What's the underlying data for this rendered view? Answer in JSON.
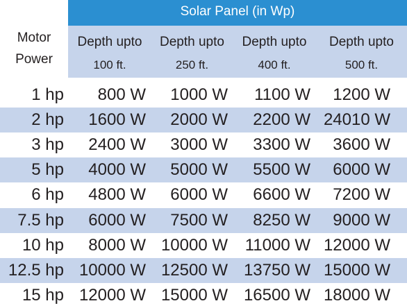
{
  "table": {
    "title": "Solar Panel (in Wp)",
    "motor_header": [
      "Motor",
      "Power"
    ],
    "depth_headers": [
      [
        "Depth upto",
        "100 ft."
      ],
      [
        "Depth upto",
        "250 ft."
      ],
      [
        "Depth upto",
        "400 ft."
      ],
      [
        "Depth upto",
        "500 ft."
      ]
    ],
    "rows": [
      [
        "1 hp",
        "800 W",
        "1000 W",
        "1100 W",
        "1200 W"
      ],
      [
        "2 hp",
        "1600 W",
        "2000 W",
        "2200 W",
        "24010 W"
      ],
      [
        "3 hp",
        "2400 W",
        "3000 W",
        "3300 W",
        "3600 W"
      ],
      [
        "5 hp",
        "4000 W",
        "5000 W",
        "5500 W",
        "6000 W"
      ],
      [
        "6 hp",
        "4800 W",
        "6000 W",
        "6600 W",
        "7200 W"
      ],
      [
        "7.5 hp",
        "6000 W",
        "7500 W",
        "8250 W",
        "9000 W"
      ],
      [
        "10 hp",
        "8000 W",
        "10000 W",
        "11000 W",
        "12000 W"
      ],
      [
        "12.5 hp",
        "10000 W",
        "12500 W",
        "13750 W",
        "15000 W"
      ],
      [
        "15 hp",
        "12000 W",
        "15000 W",
        "16500 W",
        "18000 W"
      ]
    ]
  }
}
